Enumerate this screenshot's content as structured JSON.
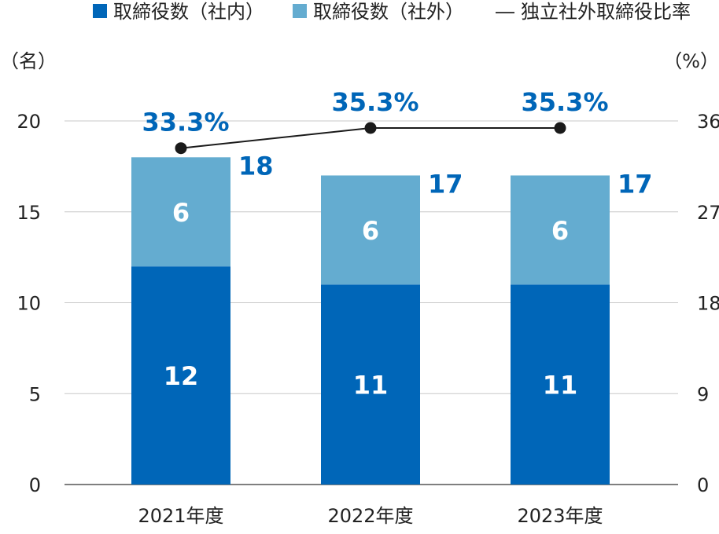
{
  "chart_data": {
    "type": "bar",
    "stacked": true,
    "categories": [
      "2021年度",
      "2022年度",
      "2023年度"
    ],
    "series": [
      {
        "name": "取締役数（社内）",
        "values": [
          12,
          11,
          11
        ],
        "color": "#0066b8"
      },
      {
        "name": "取締役数（社外）",
        "values": [
          6,
          6,
          6
        ],
        "color": "#64acd0"
      }
    ],
    "totals": [
      "18",
      "17",
      "17"
    ],
    "line_series": {
      "name": "独立社外取締役比率",
      "values": [
        33.3,
        35.3,
        35.3
      ],
      "labels": [
        "33.3%",
        "35.3%",
        "35.3%"
      ],
      "axis": "right",
      "color": "#1a1a1a",
      "marker_color": "#1a1a1a"
    },
    "y_left": {
      "unit": "（名）",
      "ylim": [
        0,
        20
      ],
      "ticks": [
        "0",
        "5",
        "10",
        "15",
        "20"
      ]
    },
    "y_right": {
      "unit": "（%）",
      "ylim": [
        0,
        36
      ],
      "ticks": [
        "0",
        "9",
        "18",
        "27",
        "36"
      ]
    },
    "label_color": "#0066b8",
    "grid": true,
    "legend": "top",
    "legend_line_symbol": "―"
  }
}
